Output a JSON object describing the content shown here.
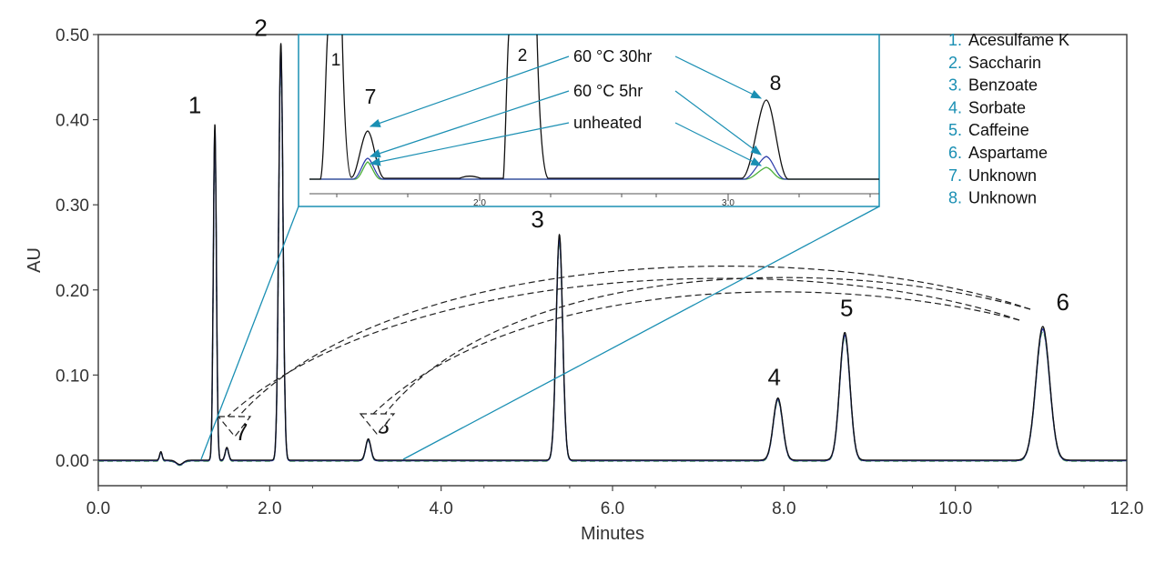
{
  "chart_data": {
    "type": "line",
    "xlabel": "Minutes",
    "ylabel": "AU",
    "xlim": [
      0.0,
      12.0
    ],
    "ylim": [
      -0.03,
      0.5
    ],
    "x_ticks": [
      "0.0",
      "2.0",
      "4.0",
      "6.0",
      "8.0",
      "10.0",
      "12.0"
    ],
    "x_tick_values": [
      0,
      2,
      4,
      6,
      8,
      10,
      12
    ],
    "y_ticks": [
      "0.00",
      "0.10",
      "0.20",
      "0.30",
      "0.40",
      "0.50"
    ],
    "y_tick_values": [
      0.0,
      0.1,
      0.2,
      0.3,
      0.4,
      0.5
    ],
    "grid": false,
    "colors": {
      "trace": "#111111",
      "trace_alt": "#2a3aa8",
      "trace_alt2": "#4caf3a",
      "inset_accent": "#1a8fb3"
    },
    "peaks": [
      {
        "label": "1",
        "rt": 1.36,
        "height": 0.395,
        "width": 0.018
      },
      {
        "label": "2",
        "rt": 2.13,
        "height": 0.49,
        "width": 0.025
      },
      {
        "label": "7",
        "rt": 1.5,
        "height": 0.015,
        "width": 0.02
      },
      {
        "label": "8",
        "rt": 3.15,
        "height": 0.025,
        "width": 0.03
      },
      {
        "label": "3",
        "rt": 5.38,
        "height": 0.265,
        "width": 0.038
      },
      {
        "label": "4",
        "rt": 7.93,
        "height": 0.073,
        "width": 0.055
      },
      {
        "label": "5",
        "rt": 8.71,
        "height": 0.15,
        "width": 0.06
      },
      {
        "label": "6",
        "rt": 11.02,
        "height": 0.157,
        "width": 0.08
      }
    ],
    "minor_peaks": [
      {
        "rt": 0.73,
        "height": 0.01,
        "width": 0.015
      },
      {
        "rt": 0.95,
        "height": -0.005,
        "width": 0.04
      }
    ],
    "legend": [
      {
        "num": "1.",
        "name": "Acesulfame K"
      },
      {
        "num": "2.",
        "name": "Saccharin"
      },
      {
        "num": "3.",
        "name": "Benzoate"
      },
      {
        "num": "4.",
        "name": "Sorbate"
      },
      {
        "num": "5.",
        "name": "Caffeine"
      },
      {
        "num": "6.",
        "name": "Aspartame"
      },
      {
        "num": "7.",
        "name": "Unknown"
      },
      {
        "num": "8.",
        "name": "Unknown"
      }
    ],
    "legend_position": "top-right",
    "inset": {
      "x_ticks": [
        "2.0",
        "3.0"
      ],
      "labels": {
        "peak1": "1",
        "peak2": "2",
        "peak7": "7",
        "peak8": "8"
      },
      "annotations": [
        "60 °C 30hr",
        "60 °C 5hr",
        "unheated"
      ]
    }
  }
}
